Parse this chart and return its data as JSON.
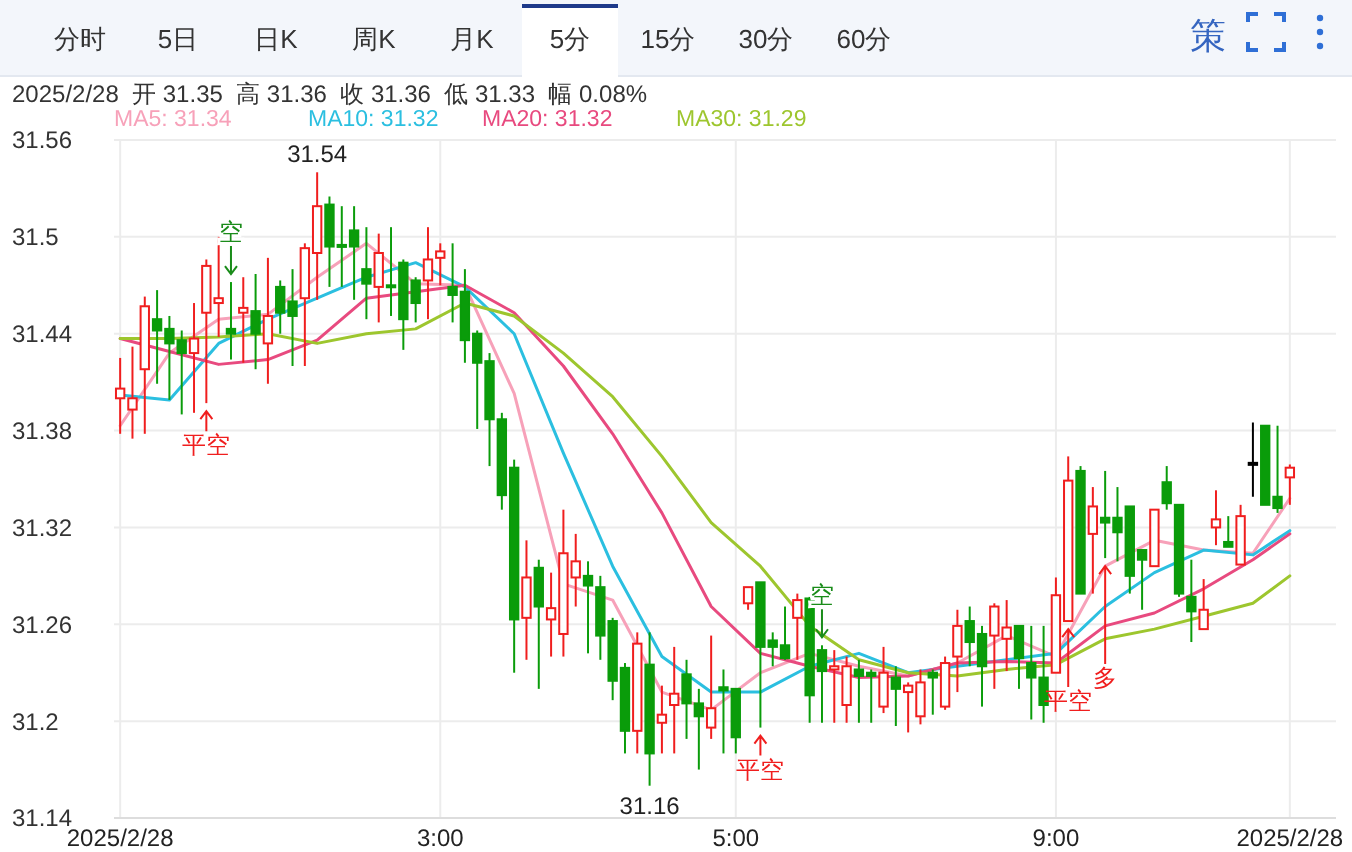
{
  "chart_data": {
    "type": "candlestick",
    "subtitle": "2025/2/28  开 31.35  高 31.36  收 31.36  低 31.33  幅 0.08%",
    "annotations": [
      "分时",
      "5日",
      "日K",
      "周K",
      "月K",
      "5分",
      "15分",
      "30分",
      "60分",
      "策",
      {
        "text": "31.54",
        "y": 31.54
      },
      {
        "text": "31.16",
        "y": 31.16
      },
      {
        "text": "空",
        "y": 31.472
      },
      {
        "text": "平空",
        "y": 31.397
      },
      {
        "text": "平空",
        "y": 31.196
      },
      {
        "text": "空",
        "y": 31.247
      },
      {
        "text": "平空",
        "y": 31.262
      },
      {
        "text": "多",
        "y": 31.301
      }
    ],
    "categories": [
      "2025/2/28",
      null,
      null,
      null,
      null,
      null,
      null,
      null,
      null,
      null,
      null,
      null,
      null,
      null,
      null,
      null,
      null,
      null,
      null,
      null,
      null,
      null,
      null,
      null,
      null,
      null,
      "3:00",
      null,
      null,
      null,
      null,
      null,
      null,
      null,
      null,
      null,
      null,
      null,
      null,
      null,
      null,
      null,
      null,
      null,
      null,
      null,
      null,
      null,
      null,
      null,
      "5:00",
      null,
      null,
      null,
      null,
      null,
      null,
      null,
      null,
      null,
      null,
      null,
      null,
      null,
      null,
      null,
      null,
      null,
      null,
      null,
      null,
      null,
      null,
      null,
      null,
      null,
      "9:00",
      null,
      null,
      null,
      null,
      null,
      null,
      null,
      null,
      null,
      null,
      null,
      null,
      null,
      null,
      null,
      null,
      null,
      null,
      "2025/2/28"
    ],
    "ohlc": [
      [
        31.4,
        31.425,
        31.378,
        31.406
      ],
      [
        31.393,
        31.432,
        31.375,
        31.4
      ],
      [
        31.418,
        31.463,
        31.378,
        31.457
      ],
      [
        31.449,
        31.467,
        31.409,
        31.442
      ],
      [
        31.443,
        31.451,
        31.399,
        31.434
      ],
      [
        31.436,
        31.442,
        31.39,
        31.428
      ],
      [
        31.428,
        31.459,
        31.391,
        31.437
      ],
      [
        31.453,
        31.486,
        31.397,
        31.482
      ],
      [
        31.459,
        31.5,
        31.438,
        31.462
      ],
      [
        31.443,
        31.472,
        31.424,
        31.44
      ],
      [
        31.453,
        31.475,
        31.422,
        31.456
      ],
      [
        31.454,
        31.477,
        31.418,
        31.44
      ],
      [
        31.434,
        31.487,
        31.409,
        31.451
      ],
      [
        31.469,
        31.473,
        31.44,
        31.453
      ],
      [
        31.46,
        31.48,
        31.42,
        31.451
      ],
      [
        31.462,
        31.496,
        31.42,
        31.493
      ],
      [
        31.49,
        31.54,
        31.461,
        31.519
      ],
      [
        31.52,
        31.525,
        31.469,
        31.494
      ],
      [
        31.495,
        31.519,
        31.469,
        31.494
      ],
      [
        31.504,
        31.519,
        31.461,
        31.494
      ],
      [
        31.48,
        31.506,
        31.449,
        31.471
      ],
      [
        31.469,
        31.502,
        31.447,
        31.49
      ],
      [
        31.47,
        31.506,
        31.451,
        31.469
      ],
      [
        31.484,
        31.486,
        31.43,
        31.449
      ],
      [
        31.473,
        31.475,
        31.447,
        31.459
      ],
      [
        31.473,
        31.506,
        31.449,
        31.486
      ],
      [
        31.487,
        31.496,
        31.47,
        31.491
      ],
      [
        31.469,
        31.496,
        31.447,
        31.464
      ],
      [
        31.466,
        31.48,
        31.422,
        31.436
      ],
      [
        31.44,
        31.442,
        31.381,
        31.422
      ],
      [
        31.423,
        31.428,
        31.358,
        31.387
      ],
      [
        31.387,
        31.391,
        31.331,
        31.34
      ],
      [
        31.357,
        31.362,
        31.23,
        31.263
      ],
      [
        31.264,
        31.312,
        31.238,
        31.289
      ],
      [
        31.295,
        31.3,
        31.22,
        31.271
      ],
      [
        31.263,
        31.292,
        31.24,
        31.27
      ],
      [
        31.254,
        31.331,
        31.24,
        31.304
      ],
      [
        31.289,
        31.316,
        31.271,
        31.299
      ],
      [
        31.29,
        31.299,
        31.242,
        31.284
      ],
      [
        31.283,
        31.29,
        31.238,
        31.253
      ],
      [
        31.262,
        31.264,
        31.213,
        31.225
      ],
      [
        31.233,
        31.236,
        31.18,
        31.194
      ],
      [
        31.194,
        31.255,
        31.18,
        31.248
      ],
      [
        31.235,
        31.255,
        31.16,
        31.18
      ],
      [
        31.199,
        31.222,
        31.18,
        31.204
      ],
      [
        31.21,
        31.246,
        31.18,
        31.217
      ],
      [
        31.229,
        31.238,
        31.189,
        31.211
      ],
      [
        31.211,
        31.22,
        31.17,
        31.203
      ],
      [
        31.196,
        31.253,
        31.189,
        31.208
      ],
      [
        31.221,
        31.232,
        31.18,
        31.219
      ],
      [
        31.22,
        31.22,
        31.18,
        31.19
      ],
      [
        31.273,
        31.283,
        31.269,
        31.283
      ],
      [
        31.286,
        31.286,
        31.196,
        31.246
      ],
      [
        31.25,
        31.255,
        31.234,
        31.246
      ],
      [
        31.247,
        31.271,
        31.238,
        31.239
      ],
      [
        31.264,
        31.279,
        31.238,
        31.275
      ],
      [
        31.276,
        31.277,
        31.199,
        31.216
      ],
      [
        31.244,
        31.247,
        31.199,
        31.231
      ],
      [
        31.232,
        31.244,
        31.199,
        31.234
      ],
      [
        31.21,
        31.24,
        31.199,
        31.234
      ],
      [
        31.232,
        31.238,
        31.199,
        31.228
      ],
      [
        31.23,
        31.232,
        31.199,
        31.228
      ],
      [
        31.209,
        31.246,
        31.205,
        31.23
      ],
      [
        31.227,
        31.234,
        31.197,
        31.22
      ],
      [
        31.218,
        31.224,
        31.193,
        31.222
      ],
      [
        31.203,
        31.232,
        31.198,
        31.224
      ],
      [
        31.23,
        31.232,
        31.204,
        31.227
      ],
      [
        31.209,
        31.24,
        31.207,
        31.236
      ],
      [
        31.24,
        31.269,
        31.218,
        31.259
      ],
      [
        31.262,
        31.271,
        31.234,
        31.249
      ],
      [
        31.254,
        31.259,
        31.209,
        31.234
      ],
      [
        31.253,
        31.273,
        31.22,
        31.271
      ],
      [
        31.251,
        31.275,
        31.231,
        31.258
      ],
      [
        31.259,
        31.259,
        31.22,
        31.239
      ],
      [
        31.236,
        31.259,
        31.201,
        31.227
      ],
      [
        31.227,
        31.259,
        31.199,
        31.21
      ],
      [
        31.23,
        31.289,
        31.23,
        31.278
      ],
      [
        31.262,
        31.364,
        31.262,
        31.349
      ],
      [
        31.355,
        31.358,
        31.279,
        31.279
      ],
      [
        31.316,
        31.345,
        31.279,
        31.333
      ],
      [
        31.326,
        31.355,
        31.301,
        31.323
      ],
      [
        31.326,
        31.345,
        31.299,
        31.317
      ],
      [
        31.333,
        31.333,
        31.279,
        31.29
      ],
      [
        31.306,
        31.306,
        31.269,
        31.3
      ],
      [
        31.296,
        31.331,
        31.296,
        31.331
      ],
      [
        31.348,
        31.358,
        31.331,
        31.335
      ],
      [
        31.334,
        31.334,
        31.277,
        31.279
      ],
      [
        31.277,
        31.3,
        31.249,
        31.268
      ],
      [
        31.257,
        31.288,
        31.257,
        31.269
      ],
      [
        31.32,
        31.343,
        31.309,
        31.325
      ],
      [
        31.311,
        31.327,
        31.308,
        31.308
      ],
      [
        31.297,
        31.334,
        31.297,
        31.327
      ],
      [
        31.36,
        31.385,
        31.339,
        31.36
      ],
      [
        31.383,
        31.383,
        31.334,
        31.334
      ],
      [
        31.339,
        31.383,
        31.329,
        31.332
      ],
      [
        31.351,
        31.359,
        31.334,
        31.357
      ]
    ],
    "colors": [
      "#f01e1e",
      "#f01e1e",
      "#f01e1e",
      "#0a9c0a",
      "#0a9c0a",
      "#0a9c0a",
      "#f01e1e",
      "#f01e1e",
      "#f01e1e",
      "#0a9c0a",
      "#f01e1e",
      "#0a9c0a",
      "#f01e1e",
      "#0a9c0a",
      "#0a9c0a",
      "#f01e1e",
      "#f01e1e",
      "#0a9c0a",
      "#0a9c0a",
      "#0a9c0a",
      "#0a9c0a",
      "#f01e1e",
      "#0a9c0a",
      "#0a9c0a",
      "#0a9c0a",
      "#f01e1e",
      "#f01e1e",
      "#0a9c0a",
      "#0a9c0a",
      "#0a9c0a",
      "#0a9c0a",
      "#0a9c0a",
      "#0a9c0a",
      "#f01e1e",
      "#0a9c0a",
      "#f01e1e",
      "#f01e1e",
      "#f01e1e",
      "#0a9c0a",
      "#0a9c0a",
      "#0a9c0a",
      "#0a9c0a",
      "#f01e1e",
      "#0a9c0a",
      "#f01e1e",
      "#f01e1e",
      "#0a9c0a",
      "#0a9c0a",
      "#f01e1e",
      "#0a9c0a",
      "#0a9c0a",
      "#f01e1e",
      "#0a9c0a",
      "#0a9c0a",
      "#0a9c0a",
      "#f01e1e",
      "#0a9c0a",
      "#0a9c0a",
      "#f01e1e",
      "#f01e1e",
      "#0a9c0a",
      "#0a9c0a",
      "#f01e1e",
      "#0a9c0a",
      "#f01e1e",
      "#f01e1e",
      "#0a9c0a",
      "#f01e1e",
      "#f01e1e",
      "#0a9c0a",
      "#0a9c0a",
      "#f01e1e",
      "#f01e1e",
      "#0a9c0a",
      "#0a9c0a",
      "#0a9c0a",
      "#f01e1e",
      "#f01e1e",
      "#0a9c0a",
      "#f01e1e",
      "#0a9c0a",
      "#0a9c0a",
      "#0a9c0a",
      "#0a9c0a",
      "#f01e1e",
      "#0a9c0a",
      "#0a9c0a",
      "#0a9c0a",
      "#f01e1e",
      "#f01e1e",
      "#0a9c0a",
      "#f01e1e",
      "#000000",
      "#0a9c0a",
      "#0a9c0a",
      "#f01e1e"
    ],
    "series": [
      {
        "name": "MA5: 31.34",
        "type": "line",
        "color": "#f7a1b9",
        "values": [
          31.383,
          null,
          null,
          null,
          31.428,
          null,
          null,
          null,
          31.449,
          null,
          null,
          null,
          31.452,
          null,
          null,
          null,
          31.475,
          null,
          null,
          null,
          31.496,
          null,
          null,
          null,
          31.471,
          null,
          null,
          null,
          31.47,
          null,
          null,
          null,
          31.403,
          null,
          null,
          null,
          31.285,
          null,
          null,
          null,
          31.275,
          null,
          null,
          null,
          31.218,
          null,
          null,
          null,
          31.207,
          null,
          null,
          null,
          31.23,
          null,
          null,
          null,
          31.242,
          null,
          null,
          null,
          31.234,
          null,
          null,
          null,
          31.228,
          null,
          null,
          null,
          31.236,
          null,
          null,
          null,
          31.253,
          null,
          null,
          null,
          31.24,
          null,
          null,
          null,
          31.296,
          null,
          null,
          null,
          31.312,
          null,
          null,
          null,
          31.306,
          null,
          null,
          null,
          31.304,
          null,
          null,
          31.338
        ]
      },
      {
        "name": "MA10: 31.32",
        "type": "line",
        "color": "#2bbfe0",
        "values": [
          31.402,
          null,
          null,
          null,
          31.399,
          null,
          null,
          null,
          31.434,
          null,
          null,
          null,
          31.449,
          null,
          null,
          null,
          31.462,
          null,
          null,
          null,
          31.475,
          null,
          null,
          null,
          31.484,
          null,
          null,
          null,
          31.469,
          null,
          null,
          null,
          31.44,
          null,
          null,
          null,
          31.366,
          null,
          null,
          null,
          31.296,
          null,
          null,
          null,
          31.24,
          null,
          null,
          null,
          31.218,
          null,
          null,
          null,
          31.218,
          null,
          null,
          null,
          31.234,
          null,
          null,
          null,
          31.242,
          null,
          null,
          null,
          31.23,
          null,
          null,
          null,
          31.234,
          null,
          null,
          null,
          31.238,
          null,
          null,
          null,
          31.242,
          null,
          null,
          null,
          31.271,
          null,
          null,
          null,
          31.292,
          null,
          null,
          null,
          31.306,
          null,
          null,
          null,
          31.303,
          null,
          null,
          31.318
        ]
      },
      {
        "name": "MA20: 31.32",
        "type": "line",
        "color": "#e84a7f",
        "values": [
          31.437,
          null,
          null,
          null,
          31.429,
          null,
          null,
          null,
          31.421,
          null,
          null,
          null,
          31.424,
          null,
          null,
          null,
          31.436,
          null,
          null,
          null,
          31.462,
          null,
          null,
          null,
          31.466,
          null,
          null,
          null,
          31.47,
          null,
          null,
          null,
          31.453,
          null,
          null,
          null,
          31.42,
          null,
          null,
          null,
          31.378,
          null,
          null,
          null,
          31.329,
          null,
          null,
          null,
          31.271,
          null,
          null,
          null,
          31.242,
          null,
          null,
          null,
          31.234,
          null,
          null,
          null,
          31.227,
          null,
          null,
          null,
          31.228,
          null,
          null,
          null,
          31.236,
          null,
          null,
          null,
          31.237,
          null,
          null,
          null,
          31.236,
          null,
          null,
          null,
          31.259,
          null,
          null,
          null,
          31.267,
          null,
          null,
          null,
          31.282,
          null,
          null,
          null,
          31.3,
          null,
          null,
          31.316
        ]
      },
      {
        "name": "MA30: 31.29",
        "type": "line",
        "color": "#9dc62e",
        "values": [
          31.437,
          null,
          null,
          null,
          31.437,
          null,
          null,
          null,
          31.438,
          null,
          null,
          null,
          31.44,
          null,
          null,
          null,
          31.434,
          null,
          null,
          null,
          31.44,
          null,
          null,
          null,
          31.443,
          null,
          null,
          null,
          31.459,
          null,
          null,
          null,
          31.451,
          null,
          null,
          null,
          31.428,
          null,
          null,
          null,
          31.401,
          null,
          null,
          null,
          31.364,
          null,
          null,
          null,
          31.323,
          null,
          null,
          null,
          31.296,
          null,
          null,
          null,
          31.259,
          null,
          null,
          null,
          31.238,
          null,
          null,
          null,
          31.23,
          null,
          null,
          null,
          31.228,
          null,
          null,
          null,
          31.232,
          null,
          null,
          null,
          31.235,
          null,
          null,
          null,
          31.251,
          null,
          null,
          null,
          31.257,
          null,
          null,
          null,
          31.265,
          null,
          null,
          null,
          31.273,
          null,
          null,
          31.29
        ]
      }
    ],
    "ylim": [
      31.14,
      31.56
    ],
    "yticks": [
      31.14,
      31.2,
      31.26,
      31.32,
      31.38,
      31.44,
      31.5,
      31.56
    ],
    "grid": true,
    "legend": "top left"
  }
}
